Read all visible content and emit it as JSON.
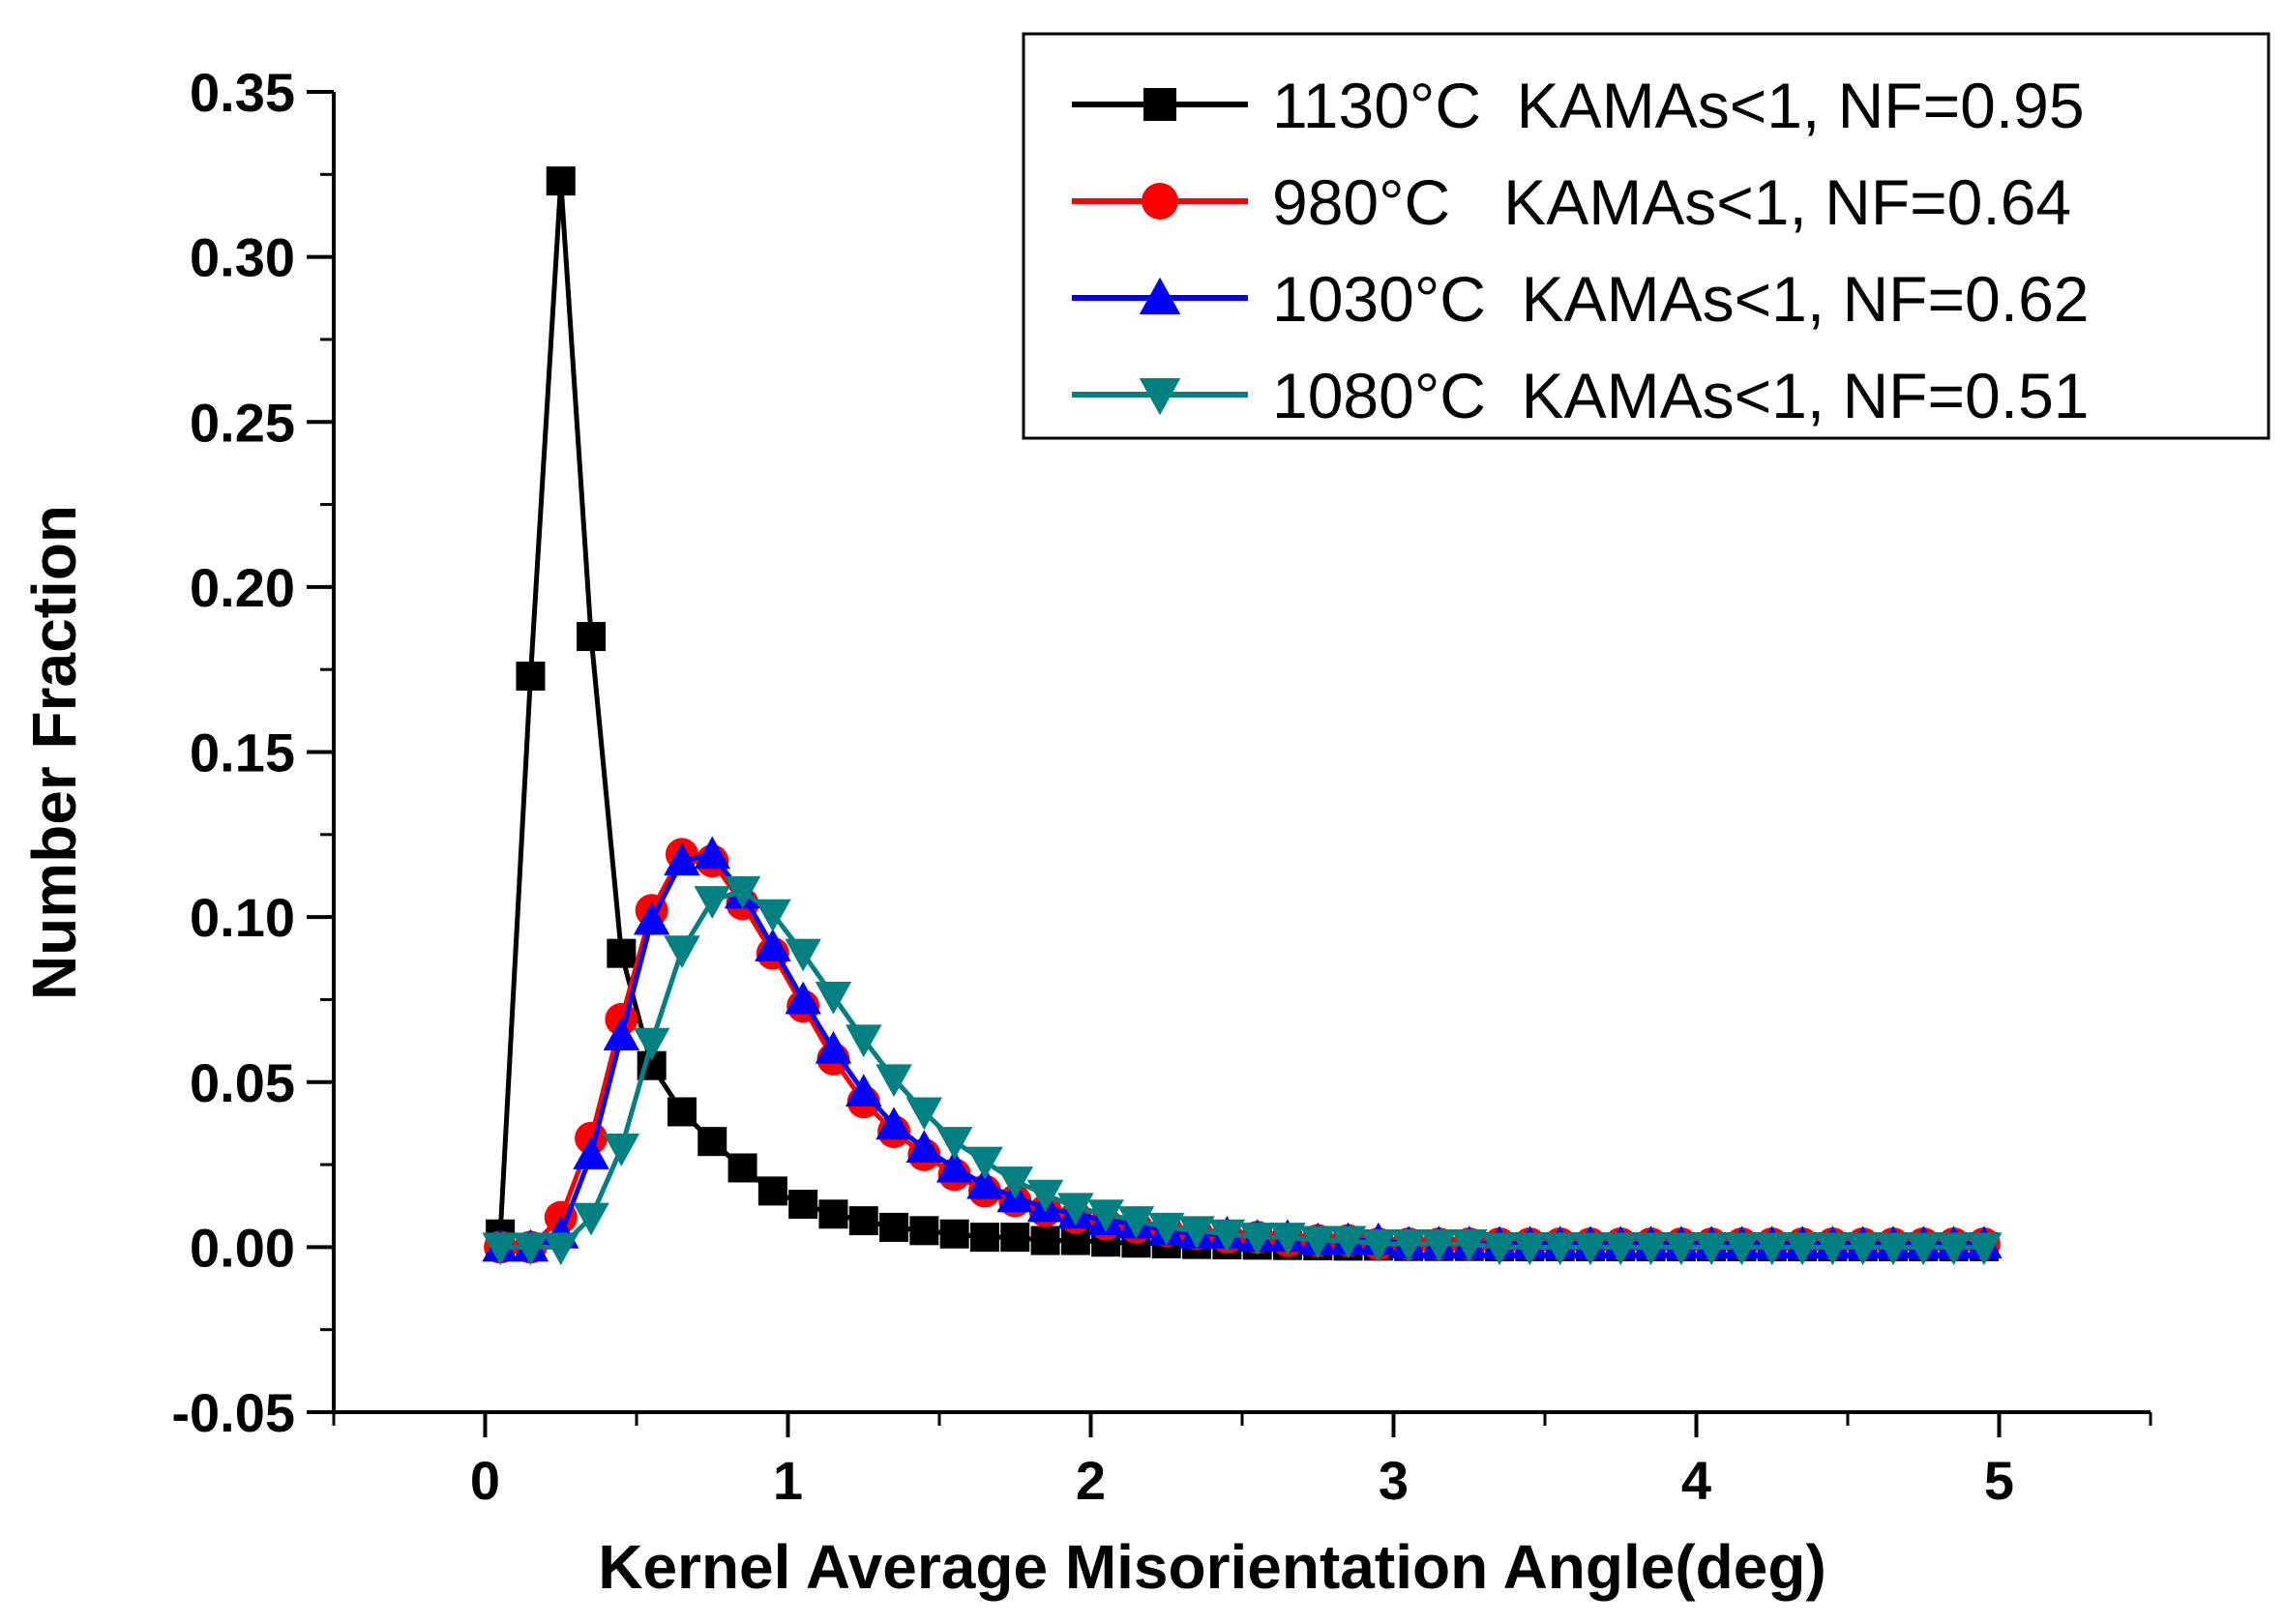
{
  "chart_data": {
    "type": "line",
    "title": "",
    "xlabel": "Kernel Average Misorientation Angle(deg)",
    "ylabel": "Number Fraction",
    "xlim": [
      -0.5,
      5.5
    ],
    "ylim": [
      -0.05,
      0.35
    ],
    "xticks": [
      0,
      1,
      2,
      3,
      4,
      5
    ],
    "xtick_labels": [
      "0",
      "1",
      "2",
      "3",
      "4",
      "5"
    ],
    "yticks": [
      -0.05,
      0.0,
      0.05,
      0.1,
      0.15,
      0.2,
      0.25,
      0.3,
      0.35
    ],
    "ytick_labels": [
      "-0.05",
      "0.00",
      "0.05",
      "0.10",
      "0.15",
      "0.20",
      "0.25",
      "0.30",
      "0.35"
    ],
    "grid": false,
    "legend_position": "top-right",
    "x": [
      0.05,
      0.15,
      0.25,
      0.35,
      0.45,
      0.55,
      0.65,
      0.75,
      0.85,
      0.95,
      1.05,
      1.15,
      1.25,
      1.35,
      1.45,
      1.55,
      1.65,
      1.75,
      1.85,
      1.95,
      2.05,
      2.15,
      2.25,
      2.35,
      2.45,
      2.55,
      2.65,
      2.75,
      2.85,
      2.95,
      3.05,
      3.15,
      3.25,
      3.35,
      3.45,
      3.55,
      3.65,
      3.75,
      3.85,
      3.95,
      4.05,
      4.15,
      4.25,
      4.35,
      4.45,
      4.55,
      4.65,
      4.75,
      4.85,
      4.95
    ],
    "series": [
      {
        "name": "1130°C  KAMAs<1, NF=0.95",
        "color": "#000000",
        "marker": "square",
        "values": [
          0.004,
          0.173,
          0.323,
          0.185,
          0.089,
          0.055,
          0.041,
          0.032,
          0.024,
          0.017,
          0.013,
          0.01,
          0.008,
          0.006,
          0.005,
          0.004,
          0.003,
          0.003,
          0.002,
          0.002,
          0.0015,
          0.0012,
          0.001,
          0.0008,
          0.0007,
          0.0006,
          0.0005,
          0.0004,
          0.0003,
          0.0003,
          0.0002,
          0.0002,
          0.0002,
          0.0001,
          0.0001,
          0.0001,
          0.0001,
          0.0001,
          0.0001,
          0.0001,
          0.0001,
          0.0001,
          0.0001,
          0.0001,
          0.0001,
          0.0001,
          0.0001,
          0.0001,
          0.0001,
          0.0001
        ]
      },
      {
        "name": "980°C   KAMAs<1, NF=0.64",
        "color": "#ff0000",
        "marker": "circle",
        "values": [
          0.0,
          0.0,
          0.009,
          0.033,
          0.069,
          0.102,
          0.119,
          0.117,
          0.104,
          0.089,
          0.073,
          0.057,
          0.044,
          0.035,
          0.028,
          0.022,
          0.017,
          0.014,
          0.011,
          0.009,
          0.007,
          0.006,
          0.005,
          0.004,
          0.003,
          0.003,
          0.002,
          0.002,
          0.002,
          0.001,
          0.001,
          0.001,
          0.001,
          0.001,
          0.001,
          0.001,
          0.001,
          0.001,
          0.001,
          0.001,
          0.001,
          0.001,
          0.001,
          0.001,
          0.001,
          0.001,
          0.001,
          0.001,
          0.001,
          0.001
        ]
      },
      {
        "name": "1030°C  KAMAs<1, NF=0.62",
        "color": "#0000ff",
        "marker": "triangle-up",
        "values": [
          0.0,
          0.0,
          0.004,
          0.028,
          0.064,
          0.099,
          0.117,
          0.119,
          0.107,
          0.091,
          0.075,
          0.06,
          0.047,
          0.037,
          0.03,
          0.024,
          0.019,
          0.015,
          0.012,
          0.01,
          0.008,
          0.007,
          0.005,
          0.004,
          0.004,
          0.003,
          0.003,
          0.002,
          0.002,
          0.002,
          0.001,
          0.001,
          0.001,
          0.001,
          0.001,
          0.001,
          0.001,
          0.001,
          0.001,
          0.001,
          0.001,
          0.001,
          0.001,
          0.001,
          0.001,
          0.001,
          0.001,
          0.001,
          0.001,
          0.001
        ]
      },
      {
        "name": "1080°C  KAMAs<1, NF=0.51",
        "color": "#008080",
        "marker": "triangle-down",
        "values": [
          0.0,
          0.0,
          0.0,
          0.009,
          0.03,
          0.062,
          0.09,
          0.105,
          0.108,
          0.101,
          0.089,
          0.076,
          0.063,
          0.051,
          0.041,
          0.032,
          0.026,
          0.02,
          0.016,
          0.012,
          0.01,
          0.008,
          0.006,
          0.005,
          0.004,
          0.003,
          0.003,
          0.002,
          0.002,
          0.001,
          0.001,
          0.001,
          0.001,
          0.0,
          0.0,
          0.0,
          0.0,
          0.0,
          0.0,
          0.0,
          0.0,
          0.0,
          0.0,
          0.0,
          0.0,
          0.0,
          0.0,
          0.0,
          0.0,
          0.0
        ]
      }
    ]
  }
}
